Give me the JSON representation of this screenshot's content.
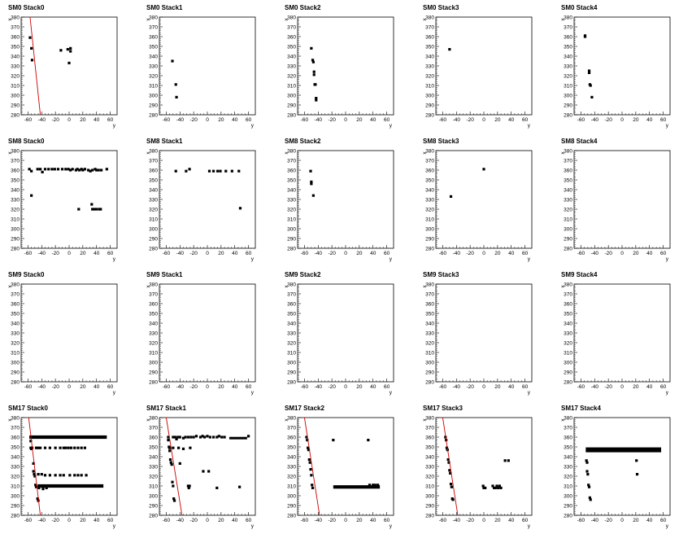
{
  "chart_data": {
    "type": "scatter",
    "xlabel": "y",
    "ylabel": "x",
    "xlim": [
      -70,
      70
    ],
    "ylim": [
      280,
      380
    ],
    "xticks": [
      -60,
      -40,
      -20,
      0,
      20,
      40,
      60
    ],
    "yticks": [
      280,
      290,
      300,
      310,
      320,
      330,
      340,
      350,
      360,
      370,
      380
    ],
    "colors": {
      "points": "#000000",
      "fit_line": "#cc0000"
    },
    "panels": [
      {
        "title": "SM0 Stack0",
        "fit": [
          [
            -57,
            380
          ],
          [
            -42,
            280
          ]
        ],
        "points": [
          [
            -57,
            359
          ],
          [
            -55,
            348
          ],
          [
            -54,
            336
          ],
          [
            -12,
            346
          ],
          [
            -2,
            347
          ],
          [
            2,
            345
          ],
          [
            2,
            348
          ],
          [
            0,
            333
          ]
        ]
      },
      {
        "title": "SM0 Stack1",
        "points": [
          [
            -51,
            335
          ],
          [
            -46,
            311
          ],
          [
            -45,
            298
          ]
        ]
      },
      {
        "title": "SM0 Stack2",
        "points": [
          [
            -50,
            348
          ],
          [
            -48,
            336
          ],
          [
            -47,
            334
          ],
          [
            -46,
            324
          ],
          [
            -46,
            321
          ],
          [
            -45,
            311
          ],
          [
            -44,
            311
          ],
          [
            -43,
            297
          ],
          [
            -43,
            295
          ]
        ]
      },
      {
        "title": "SM0 Stack3",
        "points": [
          [
            -50,
            347
          ]
        ]
      },
      {
        "title": "SM0 Stack4",
        "points": [
          [
            -54,
            360
          ],
          [
            -54,
            361
          ],
          [
            -48,
            325
          ],
          [
            -48,
            323
          ],
          [
            -47,
            311
          ],
          [
            -46,
            310
          ],
          [
            -44,
            298
          ]
        ]
      },
      {
        "title": "SM8 Stack0",
        "points": [
          [
            -58,
            361
          ],
          [
            -55,
            359
          ],
          [
            -55,
            334
          ],
          [
            -46,
            361
          ],
          [
            -42,
            361
          ],
          [
            -39,
            358
          ],
          [
            -35,
            361
          ],
          [
            -30,
            361
          ],
          [
            -25,
            361
          ],
          [
            -21,
            361
          ],
          [
            -16,
            361
          ],
          [
            -10,
            361
          ],
          [
            -5,
            361
          ],
          [
            -1,
            361
          ],
          [
            2,
            360
          ],
          [
            5,
            361
          ],
          [
            10,
            360
          ],
          [
            12,
            361
          ],
          [
            15,
            360
          ],
          [
            18,
            361
          ],
          [
            20,
            360
          ],
          [
            23,
            361
          ],
          [
            28,
            360
          ],
          [
            31,
            359
          ],
          [
            34,
            360
          ],
          [
            38,
            361
          ],
          [
            40,
            360
          ],
          [
            43,
            360
          ],
          [
            47,
            360
          ],
          [
            55,
            361
          ],
          [
            14,
            320
          ],
          [
            33,
            325
          ],
          [
            34,
            320
          ],
          [
            37,
            320
          ],
          [
            40,
            320
          ],
          [
            44,
            320
          ],
          [
            46,
            320
          ]
        ]
      },
      {
        "title": "SM8 Stack1",
        "points": [
          [
            -46,
            359
          ],
          [
            -31,
            359
          ],
          [
            -26,
            361
          ],
          [
            3,
            359
          ],
          [
            9,
            359
          ],
          [
            15,
            359
          ],
          [
            19,
            359
          ],
          [
            27,
            359
          ],
          [
            36,
            359
          ],
          [
            46,
            359
          ],
          [
            48,
            321
          ]
        ]
      },
      {
        "title": "SM8 Stack2",
        "points": [
          [
            -51,
            359
          ],
          [
            -50,
            348
          ],
          [
            -50,
            346
          ],
          [
            -47,
            334
          ]
        ]
      },
      {
        "title": "SM8 Stack3",
        "points": [
          [
            -48,
            333
          ],
          [
            0,
            361
          ]
        ]
      },
      {
        "title": "SM8 Stack4",
        "points": []
      },
      {
        "title": "SM9 Stack0",
        "points": []
      },
      {
        "title": "SM9 Stack1",
        "points": []
      },
      {
        "title": "SM9 Stack2",
        "points": []
      },
      {
        "title": "SM9 Stack3",
        "points": []
      },
      {
        "title": "SM9 Stack4",
        "points": []
      },
      {
        "title": "SM17 Stack0",
        "fit": [
          [
            -59,
            380
          ],
          [
            -42,
            280
          ]
        ],
        "bands": [
          [
            -58,
            55,
            360,
            3.5
          ],
          [
            -46,
            50,
            310,
            3.5
          ]
        ],
        "points": [
          [
            -56,
            360
          ],
          [
            -56,
            356
          ],
          [
            -56,
            349
          ],
          [
            -55,
            348
          ],
          [
            -54,
            349
          ],
          [
            -52,
            333
          ],
          [
            -52,
            325
          ],
          [
            -51,
            322
          ],
          [
            -50,
            320
          ],
          [
            -49,
            311
          ],
          [
            -48,
            309
          ],
          [
            -46,
            297
          ],
          [
            -45,
            295
          ],
          [
            -48,
            349
          ],
          [
            -45,
            349
          ],
          [
            -42,
            349
          ],
          [
            -35,
            349
          ],
          [
            -28,
            349
          ],
          [
            -20,
            349
          ],
          [
            -13,
            349
          ],
          [
            -8,
            349
          ],
          [
            -5,
            349
          ],
          [
            -1,
            349
          ],
          [
            3,
            349
          ],
          [
            8,
            349
          ],
          [
            13,
            349
          ],
          [
            18,
            349
          ],
          [
            23,
            349
          ],
          [
            -45,
            322
          ],
          [
            -40,
            322
          ],
          [
            -35,
            321
          ],
          [
            -28,
            321
          ],
          [
            -20,
            321
          ],
          [
            -13,
            321
          ],
          [
            -8,
            321
          ],
          [
            1,
            321
          ],
          [
            8,
            321
          ],
          [
            13,
            321
          ],
          [
            18,
            321
          ],
          [
            25,
            321
          ],
          [
            -44,
            308
          ],
          [
            -38,
            307
          ],
          [
            -33,
            308
          ]
        ]
      },
      {
        "title": "SM17 Stack1",
        "fit": [
          [
            -60,
            380
          ],
          [
            -37,
            280
          ]
        ],
        "bands": [
          [
            32,
            58,
            359,
            2.5
          ]
        ],
        "points": [
          [
            -57,
            360
          ],
          [
            -57,
            357
          ],
          [
            -56,
            350
          ],
          [
            -55,
            346
          ],
          [
            -54,
            337
          ],
          [
            -53,
            334
          ],
          [
            -52,
            332
          ],
          [
            -51,
            314
          ],
          [
            -50,
            310
          ],
          [
            -49,
            297
          ],
          [
            -48,
            295
          ],
          [
            -50,
            360
          ],
          [
            -47,
            360
          ],
          [
            -45,
            358
          ],
          [
            -43,
            360
          ],
          [
            -40,
            360
          ],
          [
            -35,
            359
          ],
          [
            -32,
            360
          ],
          [
            -28,
            360
          ],
          [
            -24,
            360
          ],
          [
            -20,
            360
          ],
          [
            -16,
            361
          ],
          [
            -10,
            360
          ],
          [
            -7,
            361
          ],
          [
            -4,
            360
          ],
          [
            0,
            361
          ],
          [
            4,
            360
          ],
          [
            9,
            360
          ],
          [
            14,
            360
          ],
          [
            17,
            361
          ],
          [
            21,
            360
          ],
          [
            25,
            360
          ],
          [
            60,
            361
          ],
          [
            -55,
            349
          ],
          [
            -50,
            349
          ],
          [
            -42,
            349
          ],
          [
            -35,
            348
          ],
          [
            -25,
            349
          ],
          [
            -40,
            333
          ],
          [
            -28,
            310
          ],
          [
            -27,
            308
          ],
          [
            -26,
            310
          ],
          [
            -6,
            325
          ],
          [
            2,
            325
          ],
          [
            14,
            308
          ],
          [
            47,
            309
          ]
        ]
      },
      {
        "title": "SM17 Stack2",
        "fit": [
          [
            -60,
            380
          ],
          [
            -38,
            280
          ]
        ],
        "bands": [
          [
            -18,
            50,
            309,
            3.5
          ]
        ],
        "points": [
          [
            -57,
            360
          ],
          [
            -56,
            357
          ],
          [
            -55,
            349
          ],
          [
            -54,
            347
          ],
          [
            -53,
            337
          ],
          [
            -52,
            334
          ],
          [
            -51,
            327
          ],
          [
            -50,
            321
          ],
          [
            -49,
            311
          ],
          [
            -48,
            308
          ],
          [
            -18,
            357
          ],
          [
            33,
            357
          ],
          [
            35,
            311
          ],
          [
            40,
            311
          ],
          [
            43,
            311
          ],
          [
            47,
            311
          ]
        ]
      },
      {
        "title": "SM17 Stack3",
        "fit": [
          [
            -60,
            380
          ],
          [
            -38,
            280
          ]
        ],
        "points": [
          [
            -56,
            360
          ],
          [
            -55,
            357
          ],
          [
            -54,
            349
          ],
          [
            -53,
            347
          ],
          [
            -52,
            337
          ],
          [
            -51,
            334
          ],
          [
            -50,
            326
          ],
          [
            -49,
            323
          ],
          [
            -48,
            312
          ],
          [
            -47,
            309
          ],
          [
            -46,
            297
          ],
          [
            -45,
            296
          ],
          [
            -1,
            310
          ],
          [
            0,
            308
          ],
          [
            2,
            308
          ],
          [
            13,
            310
          ],
          [
            15,
            308
          ],
          [
            17,
            308
          ],
          [
            19,
            310
          ],
          [
            21,
            308
          ],
          [
            23,
            310
          ],
          [
            25,
            308
          ],
          [
            31,
            336
          ],
          [
            36,
            336
          ]
        ]
      },
      {
        "title": "SM17 Stack4",
        "bands": [
          [
            -53,
            57,
            347,
            5
          ]
        ],
        "points": [
          [
            -52,
            336
          ],
          [
            -51,
            334
          ],
          [
            -51,
            325
          ],
          [
            -50,
            322
          ],
          [
            -49,
            311
          ],
          [
            -48,
            309
          ],
          [
            -47,
            298
          ],
          [
            -46,
            296
          ],
          [
            21,
            336
          ],
          [
            22,
            322
          ]
        ]
      }
    ]
  }
}
